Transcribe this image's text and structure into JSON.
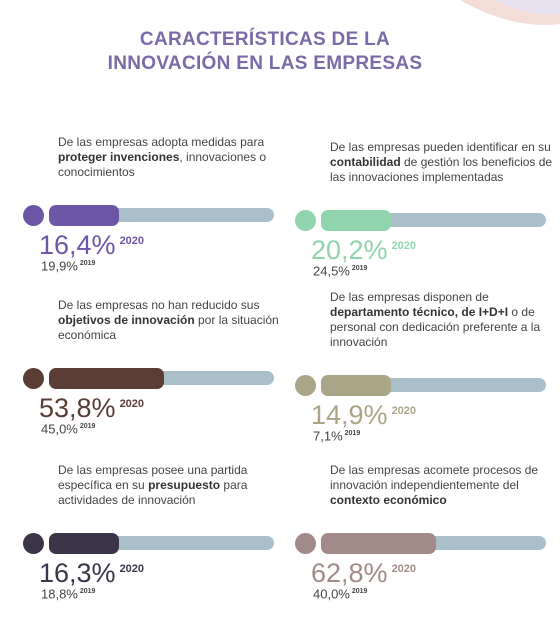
{
  "header": {
    "title_line1": "CARACTERÍSTICAS DE LA",
    "title_line2": "INNOVACIÓN EN LAS EMPRESAS"
  },
  "year_current": "2020",
  "year_previous": "2019",
  "stats": [
    {
      "desc_before": "De las empresas adopta medidas para ",
      "desc_bold": "proteger invenciones",
      "desc_after": ", innovaciones o conocimientos",
      "value_current": "16,4%",
      "value_previous": "19,9%",
      "fraction": 0.164,
      "color": "#6c56a5"
    },
    {
      "desc_before": "De las empresas pueden identificar en su ",
      "desc_bold": "contabilidad",
      "desc_after": " de gestión los beneficios de las innovaciones implementadas",
      "value_current": "20,2%",
      "value_previous": "24,5%",
      "fraction": 0.202,
      "color": "#8fd4ad"
    },
    {
      "desc_before": "De las empresas no han reducido sus ",
      "desc_bold": "objetivos de innovación",
      "desc_after": " por la situación económica",
      "value_current": "53,8%",
      "value_previous": "45,0%",
      "fraction": 0.538,
      "color": "#5a3d35"
    },
    {
      "desc_before": "De las empresas disponen de ",
      "desc_bold": "departamento técnico, de I+D+I",
      "desc_after": " o de personal con dedicación preferente a la innovación",
      "value_current": "14,9%",
      "value_previous": "7,1%",
      "fraction": 0.149,
      "color": "#aaa586"
    },
    {
      "desc_before": "De las empresas posee una partida específica en su ",
      "desc_bold": "presupuesto",
      "desc_after": " para actividades de innovación",
      "value_current": "16,3%",
      "value_previous": "18,8%",
      "fraction": 0.163,
      "color": "#3c3448"
    },
    {
      "desc_before": "De las empresas acomete procesos de innovación independientemente del ",
      "desc_bold": "contexto económico",
      "desc_after": "",
      "value_current": "62,8%",
      "value_previous": "40,0%",
      "fraction": 0.628,
      "color": "#a18a87"
    }
  ]
}
